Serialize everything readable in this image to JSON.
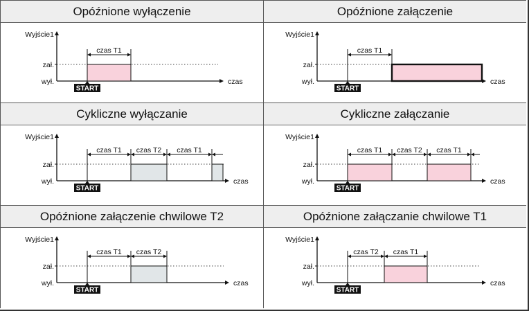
{
  "colors": {
    "pink": "#f9d2dc",
    "gray": "#e1e6e8",
    "start_bg": "#111111",
    "header_bg": "#eeeeee"
  },
  "labels": {
    "y": "Wyjście1",
    "on": "zał.",
    "off": "wył.",
    "time": "czas",
    "start": "START"
  },
  "panels": [
    {
      "title": "Opóźnione wyłączenie",
      "brackets": [
        "czas T1"
      ]
    },
    {
      "title": "Opóźnione załączenie",
      "brackets": [
        "czas T1"
      ]
    },
    {
      "title": "Cykliczne wyłączanie",
      "brackets": [
        "czas T1",
        "czas T2",
        "czas T1"
      ]
    },
    {
      "title": "Cykliczne załączanie",
      "brackets": [
        "czas T1",
        "czas T2",
        "czas T1"
      ]
    },
    {
      "title": "Opóźnione załączenie chwilowe T2",
      "brackets": [
        "czas T1",
        "czas T2"
      ]
    },
    {
      "title": "Opóźnione załączanie chwilowe T1",
      "brackets": [
        "czas T2",
        "czas T1"
      ]
    }
  ]
}
